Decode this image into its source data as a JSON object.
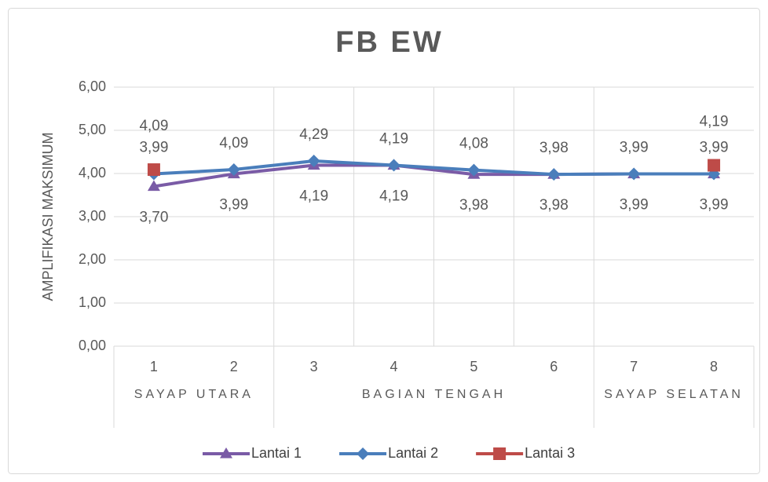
{
  "chart_data": {
    "type": "line",
    "title": "FB EW",
    "y_label": "AMPLIFIKASI MAKSIMUM",
    "categories": [
      "1",
      "2",
      "3",
      "4",
      "5",
      "6",
      "7",
      "8"
    ],
    "categories_level2": [
      "SAYAP UTARA",
      null,
      "BAGIAN TENGAH",
      null,
      null,
      null,
      "SAYAP SELATAN",
      null
    ],
    "ylim": [
      0,
      6
    ],
    "yticks": [
      {
        "value": 0,
        "label": "0,00"
      },
      {
        "value": 1,
        "label": "1,00"
      },
      {
        "value": 2,
        "label": "2,00"
      },
      {
        "value": 3,
        "label": "3,00"
      },
      {
        "value": 4,
        "label": "4,00"
      },
      {
        "value": 5,
        "label": "5,00"
      },
      {
        "value": 6,
        "label": "6,00"
      }
    ],
    "grid": true,
    "legend": "bottom",
    "series": [
      {
        "name": "Lantai 1",
        "color": "#7a5ba6",
        "marker": "triangle",
        "label_position": "below",
        "values": [
          3.7,
          3.99,
          4.19,
          4.19,
          3.98,
          3.98,
          3.99,
          3.99
        ],
        "value_labels": [
          "3,70",
          "3,99",
          "4,19",
          "4,19",
          "3,98",
          "3,98",
          "3,99",
          "3,99"
        ]
      },
      {
        "name": "Lantai 2",
        "color": "#4a7ebb",
        "marker": "diamond",
        "label_position": "above",
        "values": [
          3.99,
          4.09,
          4.29,
          4.19,
          4.08,
          3.98,
          3.99,
          3.99
        ],
        "value_labels": [
          "3,99",
          "4,09",
          "4,29",
          "4,19",
          "4,08",
          "3,98",
          "3,99",
          "3,99"
        ]
      },
      {
        "name": "Lantai 3",
        "color": "#be4b48",
        "marker": "square",
        "label_position": "above",
        "values": [
          4.09,
          null,
          null,
          null,
          null,
          null,
          null,
          4.19
        ],
        "value_labels": [
          "4,09",
          null,
          null,
          null,
          null,
          null,
          null,
          "4,19"
        ]
      }
    ]
  }
}
